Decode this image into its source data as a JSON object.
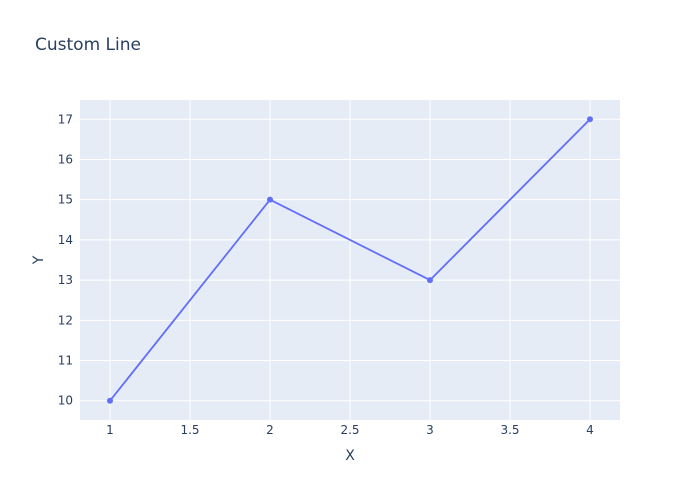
{
  "chart_data": {
    "type": "line",
    "title": "Custom Line",
    "xlabel": "X",
    "ylabel": "Y",
    "x": [
      1,
      2,
      3,
      4
    ],
    "series": [
      {
        "values": [
          10,
          15,
          13,
          17
        ]
      }
    ],
    "xlim": [
      0.8125,
      4.1875
    ],
    "ylim": [
      9.5211,
      17.4789
    ],
    "xticks": [
      1,
      1.5,
      2,
      2.5,
      3,
      3.5,
      4
    ],
    "xtick_labels": [
      "1",
      "1.5",
      "2",
      "2.5",
      "3",
      "3.5",
      "4"
    ],
    "yticks": [
      10,
      11,
      12,
      13,
      14,
      15,
      16,
      17
    ],
    "ytick_labels": [
      "10",
      "11",
      "12",
      "13",
      "14",
      "15",
      "16",
      "17"
    ],
    "grid": true,
    "markers": true,
    "colors": {
      "line": "#636efa",
      "plot_background": "#e5ecf6",
      "grid": "#ffffff",
      "text": "#2a3f5f"
    }
  }
}
